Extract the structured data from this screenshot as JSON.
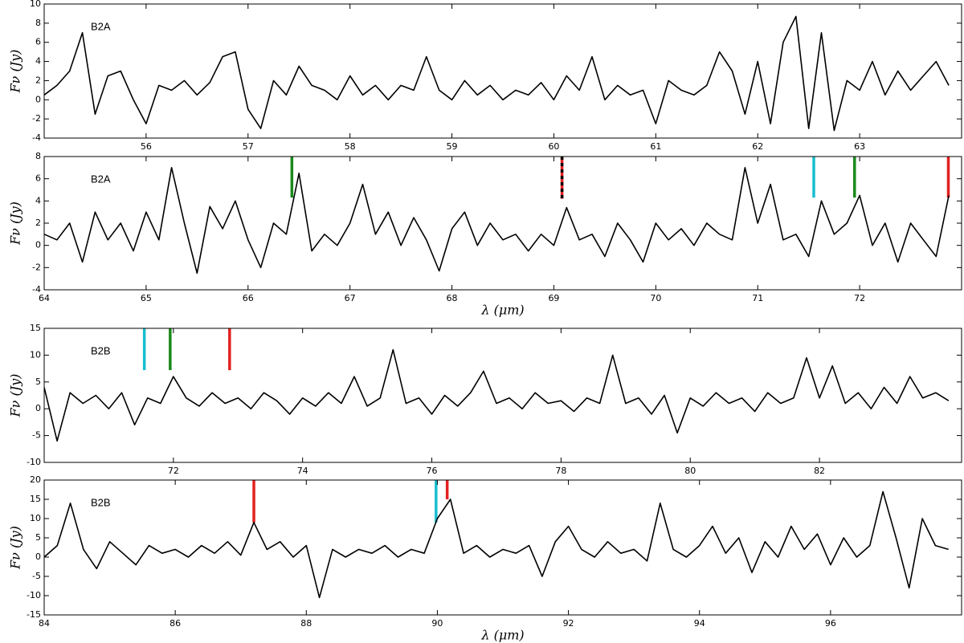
{
  "chart_data": [
    {
      "type": "line",
      "annotation": "B2A",
      "ylabel": "Fν (Jy)",
      "xlim": [
        55,
        64
      ],
      "xticks": [
        56,
        57,
        58,
        59,
        60,
        61,
        62,
        63
      ],
      "ylim": [
        -4,
        10
      ],
      "yticks": [
        -4,
        -2,
        0,
        2,
        4,
        6,
        8,
        10
      ],
      "color": "#000000",
      "x": [
        55.0,
        55.125,
        55.25,
        55.375,
        55.5,
        55.625,
        55.75,
        55.875,
        56.0,
        56.125,
        56.25,
        56.375,
        56.5,
        56.625,
        56.75,
        56.875,
        57.0,
        57.125,
        57.25,
        57.375,
        57.5,
        57.625,
        57.75,
        57.875,
        58.0,
        58.125,
        58.25,
        58.375,
        58.5,
        58.625,
        58.75,
        58.875,
        59.0,
        59.125,
        59.25,
        59.375,
        59.5,
        59.625,
        59.75,
        59.875,
        60.0,
        60.125,
        60.25,
        60.375,
        60.5,
        60.625,
        60.75,
        60.875,
        61.0,
        61.125,
        61.25,
        61.375,
        61.5,
        61.625,
        61.75,
        61.875,
        62.0,
        62.125,
        62.25,
        62.375,
        62.5,
        62.625,
        62.75,
        62.875,
        63.0,
        63.125,
        63.25,
        63.375,
        63.5,
        63.625,
        63.75,
        63.875
      ],
      "values": [
        0.5,
        1.5,
        3,
        7,
        -1.5,
        2.5,
        3,
        0,
        -2.5,
        1.5,
        1,
        2,
        0.5,
        1.8,
        4.5,
        5,
        -1,
        -3,
        2,
        0.5,
        3.5,
        1.5,
        1,
        0,
        2.5,
        0.5,
        1.5,
        0,
        1.5,
        1,
        4.5,
        1,
        0,
        2,
        0.5,
        1.5,
        0,
        1,
        0.5,
        1.8,
        0,
        2.5,
        1,
        4.5,
        0,
        1.5,
        0.5,
        1,
        -2.5,
        2,
        1,
        0.5,
        1.5,
        5,
        3,
        -1.5,
        4,
        -2.5,
        6,
        8.7,
        -3,
        7,
        -3.2,
        2,
        1,
        4,
        0.5,
        3,
        1,
        2.5,
        4,
        1.5
      ],
      "lines": []
    },
    {
      "type": "line",
      "annotation": "B2A",
      "ylabel": "Fν (Jy)",
      "xlabel": "λ (μm)",
      "xlim": [
        64,
        73
      ],
      "xticks": [
        64,
        65,
        66,
        67,
        68,
        69,
        70,
        71,
        72
      ],
      "ylim": [
        -4,
        8
      ],
      "yticks": [
        -4,
        -2,
        0,
        2,
        4,
        6,
        8
      ],
      "color": "#000000",
      "x": [
        64.0,
        64.125,
        64.25,
        64.375,
        64.5,
        64.625,
        64.75,
        64.875,
        65.0,
        65.125,
        65.25,
        65.375,
        65.5,
        65.625,
        65.75,
        65.875,
        66.0,
        66.125,
        66.25,
        66.375,
        66.5,
        66.625,
        66.75,
        66.875,
        67.0,
        67.125,
        67.25,
        67.375,
        67.5,
        67.625,
        67.75,
        67.875,
        68.0,
        68.125,
        68.25,
        68.375,
        68.5,
        68.625,
        68.75,
        68.875,
        69.0,
        69.125,
        69.25,
        69.375,
        69.5,
        69.625,
        69.75,
        69.875,
        70.0,
        70.125,
        70.25,
        70.375,
        70.5,
        70.625,
        70.75,
        70.875,
        71.0,
        71.125,
        71.25,
        71.375,
        71.5,
        71.625,
        71.75,
        71.875,
        72.0,
        72.125,
        72.25,
        72.375,
        72.5,
        72.625,
        72.75,
        72.875
      ],
      "values": [
        1,
        0.5,
        2,
        -1.5,
        3,
        0.5,
        2,
        -0.5,
        3,
        0.5,
        7,
        2,
        -2.5,
        3.5,
        1.5,
        4,
        0.5,
        -2,
        2,
        1,
        6.5,
        -0.5,
        1,
        0,
        2,
        5.5,
        1,
        3,
        0,
        2.5,
        0.5,
        -2.3,
        1.5,
        3,
        0,
        2,
        0.5,
        1,
        -0.5,
        1,
        0,
        3.4,
        0.5,
        1,
        -1,
        2,
        0.5,
        -1.5,
        2,
        0.5,
        1.5,
        0,
        2,
        1,
        0.5,
        7,
        2,
        5.5,
        0.5,
        1,
        -1,
        4,
        1,
        2,
        4.5,
        0,
        2,
        -1.5,
        2,
        0.5,
        -1,
        4.5
      ],
      "lines": [
        {
          "x": 66.43,
          "ymin": 4.3,
          "color": "#1a8a1a"
        },
        {
          "x": 69.08,
          "ymin": 4.2,
          "color": "#e32020",
          "dash_color": "#000000"
        },
        {
          "x": 71.55,
          "ymin": 4.3,
          "color": "#17becf"
        },
        {
          "x": 71.95,
          "ymin": 4.3,
          "color": "#1a8a1a"
        },
        {
          "x": 72.87,
          "ymin": 4.3,
          "color": "#e32020"
        }
      ]
    },
    {
      "type": "line",
      "annotation": "B2B",
      "ylabel": "Fν (Jy)",
      "xlim": [
        70,
        84.2
      ],
      "xticks": [
        72,
        74,
        76,
        78,
        80,
        82
      ],
      "ylim": [
        -10,
        15
      ],
      "yticks": [
        -10,
        -5,
        0,
        5,
        10,
        15
      ],
      "color": "#000000",
      "x": [
        70.0,
        70.2,
        70.4,
        70.6,
        70.8,
        71.0,
        71.2,
        71.4,
        71.6,
        71.8,
        72.0,
        72.2,
        72.4,
        72.6,
        72.8,
        73.0,
        73.2,
        73.4,
        73.6,
        73.8,
        74.0,
        74.2,
        74.4,
        74.6,
        74.8,
        75.0,
        75.2,
        75.4,
        75.6,
        75.8,
        76.0,
        76.2,
        76.4,
        76.6,
        76.8,
        77.0,
        77.2,
        77.4,
        77.6,
        77.8,
        78.0,
        78.2,
        78.4,
        78.6,
        78.8,
        79.0,
        79.2,
        79.4,
        79.6,
        79.8,
        80.0,
        80.2,
        80.4,
        80.6,
        80.8,
        81.0,
        81.2,
        81.4,
        81.6,
        81.8,
        82.0,
        82.2,
        82.4,
        82.6,
        82.8,
        83.0,
        83.2,
        83.4,
        83.6,
        83.8,
        84.0
      ],
      "values": [
        4,
        -6,
        3,
        1,
        2.5,
        0,
        3,
        -3,
        2,
        1,
        6,
        2,
        0.5,
        3,
        1,
        2,
        0,
        3,
        1.5,
        -1,
        2,
        0.5,
        3,
        1,
        6,
        0.5,
        2,
        11,
        1,
        2,
        -1,
        2.5,
        0.5,
        3,
        7,
        1,
        2,
        0,
        3,
        1,
        1.5,
        -0.5,
        2,
        1,
        10,
        1,
        2,
        -1,
        2.5,
        -4.5,
        2,
        0.5,
        3,
        1,
        2,
        -0.5,
        3,
        1,
        2,
        9.5,
        2,
        8,
        1,
        3,
        0,
        4,
        1,
        6,
        2,
        3,
        1.5
      ],
      "lines": [
        {
          "x": 71.55,
          "ymin": 7.2,
          "color": "#17becf"
        },
        {
          "x": 71.95,
          "ymin": 7.2,
          "color": "#1a8a1a"
        },
        {
          "x": 72.87,
          "ymin": 7.2,
          "color": "#e32020"
        }
      ]
    },
    {
      "type": "line",
      "annotation": "B2B",
      "ylabel": "Fν (Jy)",
      "xlabel": "λ (μm)",
      "xlim": [
        84,
        98
      ],
      "xticks": [
        84,
        86,
        88,
        90,
        92,
        94,
        96
      ],
      "ylim": [
        -15,
        20
      ],
      "yticks": [
        -15,
        -10,
        -5,
        0,
        5,
        10,
        15,
        20
      ],
      "color": "#000000",
      "x": [
        84.0,
        84.2,
        84.4,
        84.6,
        84.8,
        85.0,
        85.2,
        85.4,
        85.6,
        85.8,
        86.0,
        86.2,
        86.4,
        86.6,
        86.8,
        87.0,
        87.2,
        87.4,
        87.6,
        87.8,
        88.0,
        88.2,
        88.4,
        88.6,
        88.8,
        89.0,
        89.2,
        89.4,
        89.6,
        89.8,
        90.0,
        90.2,
        90.4,
        90.6,
        90.8,
        91.0,
        91.2,
        91.4,
        91.6,
        91.8,
        92.0,
        92.2,
        92.4,
        92.6,
        92.8,
        93.0,
        93.2,
        93.4,
        93.6,
        93.8,
        94.0,
        94.2,
        94.4,
        94.6,
        94.8,
        95.0,
        95.2,
        95.4,
        95.6,
        95.8,
        96.0,
        96.2,
        96.4,
        96.6,
        96.8,
        97.0,
        97.2,
        97.4,
        97.6,
        97.8
      ],
      "values": [
        0,
        3,
        14,
        2,
        -3,
        4,
        1,
        -2,
        3,
        1,
        2,
        0,
        3,
        1,
        4,
        0.5,
        9,
        2,
        4,
        0,
        3,
        -10.5,
        2,
        0,
        2,
        1,
        3,
        0,
        2,
        1,
        10,
        15,
        1,
        3,
        0,
        2,
        1,
        3,
        -5,
        4,
        8,
        2,
        0,
        4,
        1,
        2,
        -1,
        14,
        2,
        0,
        3,
        8,
        1,
        5,
        -4,
        4,
        0,
        8,
        2,
        6,
        -2,
        5,
        0,
        3,
        17,
        5,
        -8,
        10,
        3,
        2
      ],
      "lines": [
        {
          "x": 87.2,
          "ymin": 9,
          "color": "#e32020"
        },
        {
          "x": 89.98,
          "ymin": 9,
          "color": "#17becf"
        },
        {
          "x": 90.15,
          "ymin": 15,
          "color": "#e32020"
        }
      ]
    }
  ]
}
